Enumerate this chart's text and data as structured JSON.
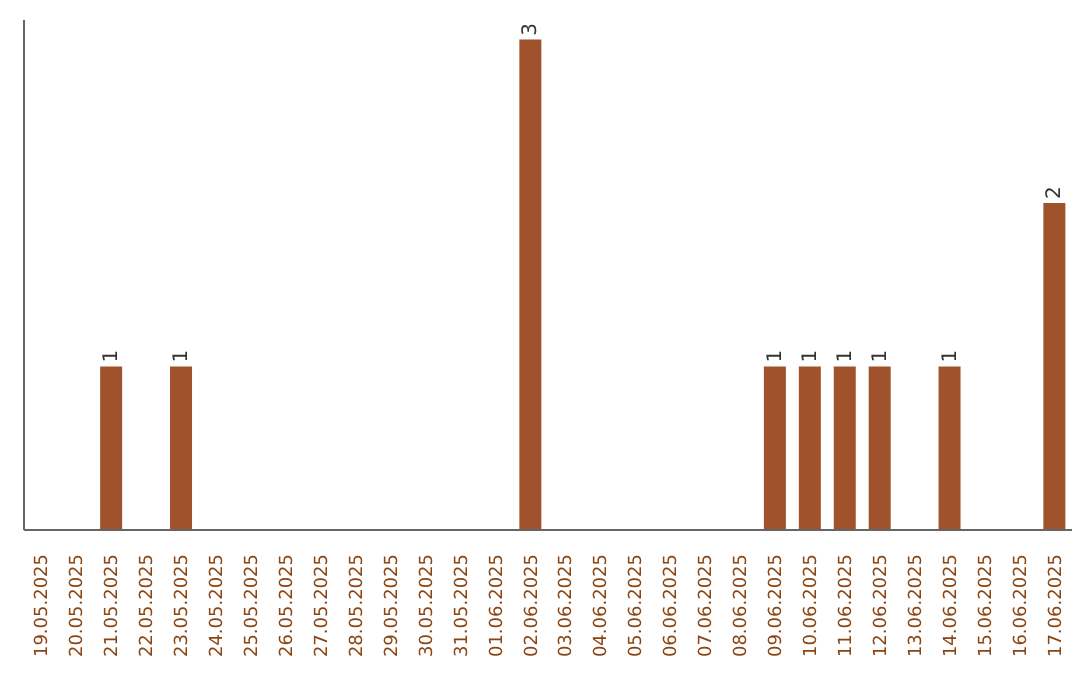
{
  "chart_data": {
    "type": "bar",
    "categories": [
      "19.05.2025",
      "20.05.2025",
      "21.05.2025",
      "22.05.2025",
      "23.05.2025",
      "24.05.2025",
      "25.05.2025",
      "26.05.2025",
      "27.05.2025",
      "28.05.2025",
      "29.05.2025",
      "30.05.2025",
      "31.05.2025",
      "01.06.2025",
      "02.06.2025",
      "03.06.2025",
      "04.06.2025",
      "05.06.2025",
      "06.06.2025",
      "07.06.2025",
      "08.06.2025",
      "09.06.2025",
      "10.06.2025",
      "11.06.2025",
      "12.06.2025",
      "13.06.2025",
      "14.06.2025",
      "15.06.2025",
      "16.06.2025",
      "17.06.2025"
    ],
    "values": [
      0,
      0,
      1,
      0,
      1,
      0,
      0,
      0,
      0,
      0,
      0,
      0,
      0,
      0,
      3,
      0,
      0,
      0,
      0,
      0,
      0,
      1,
      1,
      1,
      1,
      0,
      1,
      0,
      0,
      2
    ],
    "value_labels": [
      null,
      null,
      "1",
      null,
      "1",
      null,
      null,
      null,
      null,
      null,
      null,
      null,
      null,
      null,
      "3",
      null,
      null,
      null,
      null,
      null,
      null,
      "1",
      "1",
      "1",
      "1",
      null,
      "1",
      null,
      null,
      "2"
    ],
    "color": "#a0522d"
  }
}
